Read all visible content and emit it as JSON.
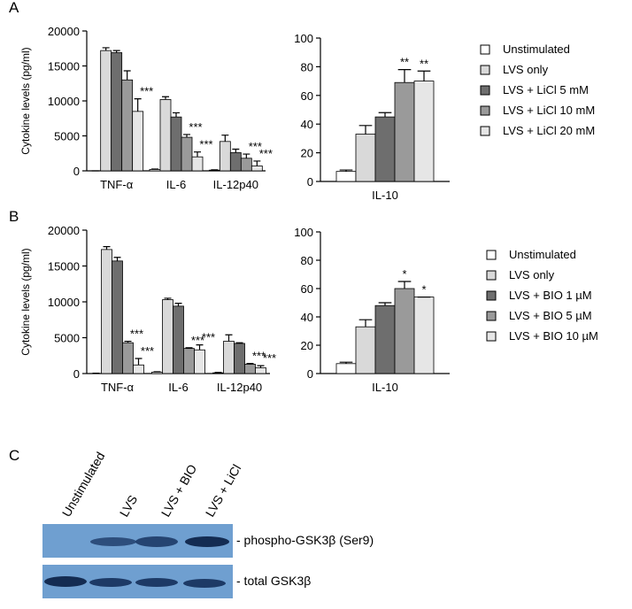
{
  "panels": [
    "A",
    "B",
    "C"
  ],
  "chart_data": [
    {
      "type": "bar",
      "ylabel": "Cytokine levels (pg/ml)",
      "categories": [
        "TNF-α",
        "IL-6",
        "IL-12p40"
      ],
      "ylim": [
        0,
        20000
      ],
      "yticks": [
        0,
        5000,
        10000,
        15000,
        20000
      ],
      "series": [
        {
          "color": "#ffffff",
          "values": [
            0,
            200,
            100
          ],
          "errors": [
            0,
            50,
            50
          ],
          "annotations": [
            null,
            null,
            null
          ]
        },
        {
          "color": "#d9d9d9",
          "values": [
            17200,
            10200,
            4200
          ],
          "errors": [
            400,
            400,
            900
          ],
          "annotations": [
            null,
            null,
            null
          ]
        },
        {
          "color": "#6e6e6e",
          "values": [
            16900,
            7700,
            2600
          ],
          "errors": [
            300,
            600,
            500
          ],
          "annotations": [
            null,
            null,
            null
          ]
        },
        {
          "color": "#9a9a9a",
          "values": [
            13000,
            4800,
            1800
          ],
          "errors": [
            1300,
            400,
            600
          ],
          "annotations": [
            null,
            "***",
            "***"
          ]
        },
        {
          "color": "#e6e6e6",
          "values": [
            8500,
            2000,
            700
          ],
          "errors": [
            1800,
            700,
            700
          ],
          "annotations": [
            "***",
            "***",
            "***"
          ]
        }
      ]
    },
    {
      "type": "bar",
      "categories": [
        "IL-10"
      ],
      "ylim": [
        0,
        100
      ],
      "yticks": [
        0,
        20,
        40,
        60,
        80,
        100
      ],
      "series": [
        {
          "name": "Unstimulated",
          "color": "#ffffff",
          "values": [
            7
          ],
          "errors": [
            1
          ],
          "annotations": [
            null
          ]
        },
        {
          "name": "LVS only",
          "color": "#d9d9d9",
          "values": [
            33
          ],
          "errors": [
            6
          ],
          "annotations": [
            null
          ]
        },
        {
          "name": "LVS + LiCl 5 mM",
          "color": "#6e6e6e",
          "values": [
            45
          ],
          "errors": [
            3
          ],
          "annotations": [
            null
          ]
        },
        {
          "name": "LVS + LiCl 10 mM",
          "color": "#9a9a9a",
          "values": [
            69
          ],
          "errors": [
            9
          ],
          "annotations": [
            "**"
          ]
        },
        {
          "name": "LVS + LiCl 20 mM",
          "color": "#e6e6e6",
          "values": [
            70
          ],
          "errors": [
            7
          ],
          "annotations": [
            "**"
          ]
        }
      ]
    },
    {
      "type": "bar",
      "ylabel": "Cytokine levels (pg/ml)",
      "categories": [
        "TNF-α",
        "IL-6",
        "IL-12p40"
      ],
      "ylim": [
        0,
        20000
      ],
      "yticks": [
        0,
        5000,
        10000,
        15000,
        20000
      ],
      "series": [
        {
          "color": "#ffffff",
          "values": [
            0,
            200,
            100
          ],
          "errors": [
            50,
            50,
            50
          ],
          "annotations": [
            null,
            null,
            null
          ]
        },
        {
          "color": "#d9d9d9",
          "values": [
            17300,
            10300,
            4500
          ],
          "errors": [
            400,
            200,
            900
          ],
          "annotations": [
            null,
            null,
            null
          ]
        },
        {
          "color": "#6e6e6e",
          "values": [
            15700,
            9400,
            4200
          ],
          "errors": [
            500,
            400,
            100
          ],
          "annotations": [
            null,
            null,
            null
          ]
        },
        {
          "color": "#9a9a9a",
          "values": [
            4300,
            3500,
            1300
          ],
          "errors": [
            200,
            100,
            100
          ],
          "annotations": [
            "***",
            "***",
            "***"
          ]
        },
        {
          "color": "#e6e6e6",
          "values": [
            1200,
            3300,
            800
          ],
          "errors": [
            900,
            700,
            300
          ],
          "annotations": [
            "***",
            "***",
            "***"
          ]
        }
      ]
    },
    {
      "type": "bar",
      "categories": [
        "IL-10"
      ],
      "ylim": [
        0,
        100
      ],
      "yticks": [
        0,
        20,
        40,
        60,
        80,
        100
      ],
      "series": [
        {
          "name": "Unstimulated",
          "color": "#ffffff",
          "values": [
            7
          ],
          "errors": [
            1
          ],
          "annotations": [
            null
          ]
        },
        {
          "name": "LVS only",
          "color": "#d9d9d9",
          "values": [
            33
          ],
          "errors": [
            5
          ],
          "annotations": [
            null
          ]
        },
        {
          "name": "LVS + BIO 1 µM",
          "color": "#6e6e6e",
          "values": [
            48
          ],
          "errors": [
            2
          ],
          "annotations": [
            null
          ]
        },
        {
          "name": "LVS + BIO 5 µM",
          "color": "#9a9a9a",
          "values": [
            60
          ],
          "errors": [
            5
          ],
          "annotations": [
            "*"
          ]
        },
        {
          "name": "LVS + BIO 10 µM",
          "color": "#e6e6e6",
          "values": [
            54
          ],
          "errors": [
            0
          ],
          "annotations": [
            "*"
          ]
        }
      ]
    }
  ],
  "blot": {
    "lanes": [
      "Unstimulated",
      "LVS",
      "LVS + BIO",
      "LVS + LiCl"
    ],
    "rows": [
      "- phospho-GSK3β (Ser9)",
      "- total GSK3β"
    ]
  }
}
